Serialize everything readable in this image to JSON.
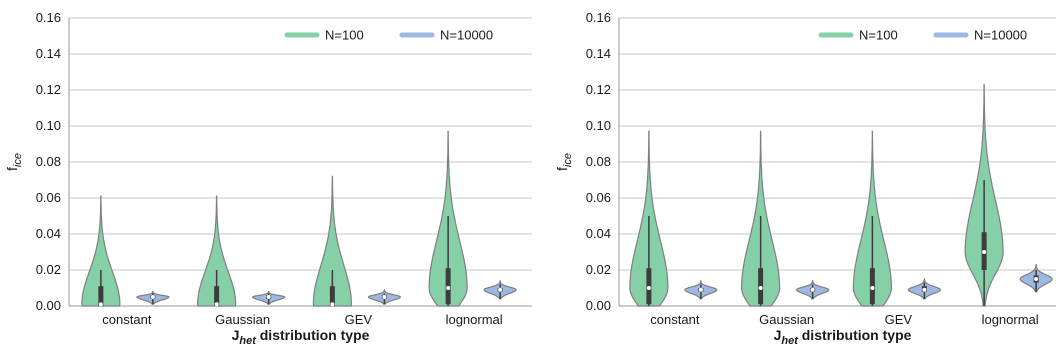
{
  "chart_data": [
    {
      "type": "violin",
      "title": "",
      "xlabel": "J",
      "xlabel_sub": "het",
      "xlabel_rest": " distribution type",
      "ylabel": "f",
      "ylabel_sub": "ice",
      "ylim": [
        0,
        0.16
      ],
      "yticks": [
        "0.00",
        "0.02",
        "0.04",
        "0.06",
        "0.08",
        "0.10",
        "0.12",
        "0.14",
        "0.16"
      ],
      "grid": true,
      "legend_position": "top-right",
      "categories": [
        "constant",
        "Gaussian",
        "GEV",
        "lognormal"
      ],
      "series": [
        {
          "name": "N=100",
          "color": "#86d0a8",
          "violins": [
            {
              "min": 0.0,
              "max": 0.061,
              "q1": 0.0,
              "median": 0.001,
              "q3": 0.011,
              "whisker_high": 0.02
            },
            {
              "min": 0.0,
              "max": 0.061,
              "q1": 0.0,
              "median": 0.001,
              "q3": 0.011,
              "whisker_high": 0.02
            },
            {
              "min": 0.0,
              "max": 0.072,
              "q1": 0.0,
              "median": 0.001,
              "q3": 0.011,
              "whisker_high": 0.02
            },
            {
              "min": 0.0,
              "max": 0.097,
              "q1": 0.001,
              "median": 0.01,
              "q3": 0.021,
              "whisker_high": 0.05
            }
          ]
        },
        {
          "name": "N=10000",
          "color": "#9db8e2",
          "violins": [
            {
              "min": 0.001,
              "max": 0.008,
              "q1": 0.004,
              "median": 0.005,
              "q3": 0.006,
              "whisker_high": 0.007
            },
            {
              "min": 0.001,
              "max": 0.008,
              "q1": 0.004,
              "median": 0.005,
              "q3": 0.006,
              "whisker_high": 0.007
            },
            {
              "min": 0.001,
              "max": 0.009,
              "q1": 0.004,
              "median": 0.005,
              "q3": 0.006,
              "whisker_high": 0.007
            },
            {
              "min": 0.004,
              "max": 0.014,
              "q1": 0.008,
              "median": 0.009,
              "q3": 0.01,
              "whisker_high": 0.012
            }
          ]
        }
      ]
    },
    {
      "type": "violin",
      "title": "",
      "xlabel": "J",
      "xlabel_sub": "het",
      "xlabel_rest": " distribution type",
      "ylabel": "f",
      "ylabel_sub": "ice",
      "ylim": [
        0,
        0.16
      ],
      "yticks": [
        "0.00",
        "0.02",
        "0.04",
        "0.06",
        "0.08",
        "0.10",
        "0.12",
        "0.14",
        "0.16"
      ],
      "grid": true,
      "legend_position": "top-right",
      "categories": [
        "constant",
        "Gaussian",
        "GEV",
        "lognormal"
      ],
      "series": [
        {
          "name": "N=100",
          "color": "#86d0a8",
          "violins": [
            {
              "min": 0.0,
              "max": 0.097,
              "q1": 0.001,
              "median": 0.01,
              "q3": 0.021,
              "whisker_high": 0.05
            },
            {
              "min": 0.0,
              "max": 0.097,
              "q1": 0.001,
              "median": 0.01,
              "q3": 0.021,
              "whisker_high": 0.05
            },
            {
              "min": 0.0,
              "max": 0.097,
              "q1": 0.001,
              "median": 0.01,
              "q3": 0.021,
              "whisker_high": 0.05
            },
            {
              "min": 0.0,
              "max": 0.123,
              "q1": 0.02,
              "median": 0.03,
              "q3": 0.041,
              "whisker_high": 0.07
            }
          ]
        },
        {
          "name": "N=10000",
          "color": "#9db8e2",
          "violins": [
            {
              "min": 0.004,
              "max": 0.014,
              "q1": 0.008,
              "median": 0.009,
              "q3": 0.01,
              "whisker_high": 0.012
            },
            {
              "min": 0.004,
              "max": 0.014,
              "q1": 0.008,
              "median": 0.009,
              "q3": 0.01,
              "whisker_high": 0.012
            },
            {
              "min": 0.004,
              "max": 0.015,
              "q1": 0.008,
              "median": 0.009,
              "q3": 0.011,
              "whisker_high": 0.013
            },
            {
              "min": 0.008,
              "max": 0.023,
              "q1": 0.013,
              "median": 0.015,
              "q3": 0.017,
              "whisker_high": 0.02
            }
          ]
        }
      ]
    }
  ]
}
